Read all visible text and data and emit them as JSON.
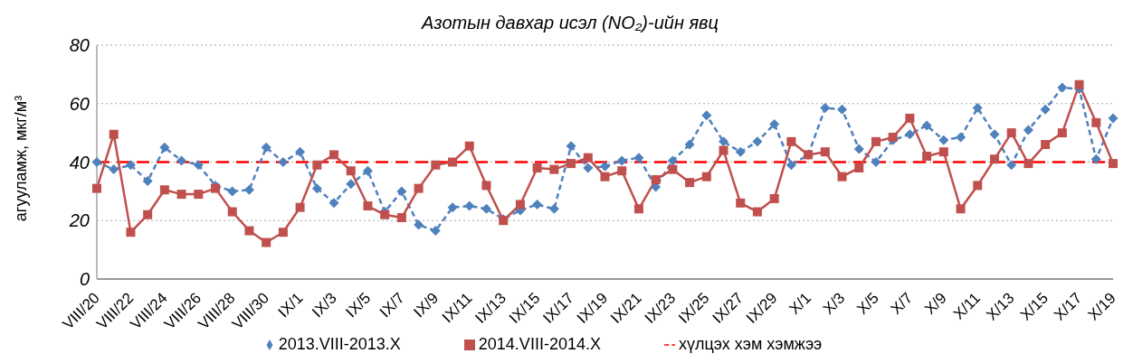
{
  "chart_data": {
    "type": "line",
    "title": "Азотын давхар исэл (NO₂)-ийн явц",
    "ylabel": "агууламж, мкг/м³",
    "categories": [
      "VIII/20",
      null,
      "VIII/22",
      null,
      "VIII/24",
      null,
      "VIII/26",
      null,
      "VIII/28",
      null,
      "VIII/30",
      null,
      "IX/1",
      null,
      "IX/3",
      null,
      "IX/5",
      null,
      "IX/7",
      null,
      "IX/9",
      null,
      "IX/11",
      null,
      "IX/13",
      null,
      "IX/15",
      null,
      "IX/17",
      null,
      "IX/19",
      null,
      "IX/21",
      null,
      "IX/23",
      null,
      "IX/25",
      null,
      "IX/27",
      null,
      "IX/29",
      null,
      "X/1",
      null,
      "X/3",
      null,
      "X/5",
      null,
      "X/7",
      null,
      "X/9",
      null,
      "X/11",
      null,
      "X/13",
      null,
      "X/15",
      null,
      "X/17",
      null,
      "X/19"
    ],
    "series": [
      {
        "name": "2013.VIII-2013.X",
        "color": "#4f81bd",
        "line_style": "dashed",
        "marker": "diamond",
        "values": [
          40,
          37.5,
          39,
          33.5,
          45,
          40.5,
          39,
          32,
          30,
          30.5,
          45,
          40,
          43.5,
          31,
          26,
          32.5,
          37,
          23,
          30,
          18.5,
          16.5,
          24.5,
          25,
          24,
          20.5,
          23.5,
          25.5,
          24,
          45.5,
          38,
          38.5,
          40.5,
          41.5,
          31.5,
          40.5,
          46,
          56,
          47,
          43.5,
          47,
          53,
          39,
          42.5,
          58.5,
          58,
          44.5,
          40,
          47.5,
          49.5,
          52.5,
          47.5,
          48.5,
          58.5,
          49.5,
          39,
          51,
          58,
          65.5,
          65,
          41,
          55
        ]
      },
      {
        "name": "2014.VIII-2014.X",
        "color": "#c0504d",
        "line_style": "solid",
        "marker": "square",
        "values": [
          31,
          49.5,
          16,
          22,
          30.5,
          29,
          29,
          31,
          23,
          16.5,
          12.5,
          16,
          24.5,
          39,
          42.5,
          37,
          25,
          22,
          21,
          31,
          39,
          40,
          45.5,
          32,
          20,
          25.5,
          38,
          37.5,
          39.5,
          41.5,
          35,
          37,
          24,
          34,
          37.5,
          33,
          35,
          44,
          26,
          23,
          27.5,
          47,
          42.5,
          43.5,
          35,
          38,
          47,
          48.5,
          55,
          42,
          43.5,
          24,
          32,
          41,
          50,
          39.5,
          46,
          50,
          66.5,
          53.5,
          39.5
        ]
      }
    ],
    "ref_lines": [
      {
        "axis": "y",
        "value": 40,
        "label": "хүлцэх хэм хэмжээ",
        "color": "#ff0000",
        "line_style": "dashed"
      }
    ],
    "ylim": [
      0,
      80
    ],
    "yticks": [
      0,
      20,
      40,
      60,
      80
    ],
    "grid": "y",
    "legend": "bottom"
  }
}
